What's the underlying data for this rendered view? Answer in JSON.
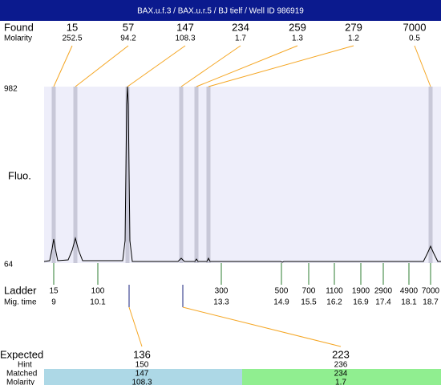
{
  "header": {
    "title": "BAX.u.f.3 / BAX.u.r.5 / BJ tielf / Well ID 986919"
  },
  "found": {
    "label": "Found",
    "molarity_label": "Molarity",
    "peaks": [
      {
        "size": 15,
        "molarity": 252.5
      },
      {
        "size": 57,
        "molarity": 94.2
      },
      {
        "size": 147,
        "molarity": 108.3
      },
      {
        "size": 234,
        "molarity": 1.7
      },
      {
        "size": 259,
        "molarity": 1.3
      },
      {
        "size": 279,
        "molarity": 1.2
      },
      {
        "size": 7000,
        "molarity": 0.5
      }
    ]
  },
  "plot": {
    "y_top": 982,
    "y_bottom": 64,
    "y_label": "Fluo."
  },
  "ladder": {
    "label": "Ladder",
    "time_label": "Mig. time",
    "markers": [
      {
        "size": 15,
        "time": 9
      },
      {
        "size": 100,
        "time": 10.1
      },
      {
        "size": 300,
        "time": 13.3
      },
      {
        "size": 500,
        "time": 14.9
      },
      {
        "size": 700,
        "time": 15.5
      },
      {
        "size": 1100,
        "time": 16.2
      },
      {
        "size": 1900,
        "time": 16.9
      },
      {
        "size": 2900,
        "time": 17.4
      },
      {
        "size": 4900,
        "time": 18.1
      },
      {
        "size": 7000,
        "time": 18.7
      }
    ]
  },
  "expected": {
    "label": "Expected",
    "hint_label": "Hint",
    "matched_label": "Matched",
    "molarity_label": "Molarity",
    "items": [
      {
        "expected": 136,
        "hint": 150,
        "matched": 147,
        "molarity": 108.3
      },
      {
        "expected": 223,
        "hint": 236,
        "matched": 234,
        "molarity": 1.7
      }
    ]
  }
}
